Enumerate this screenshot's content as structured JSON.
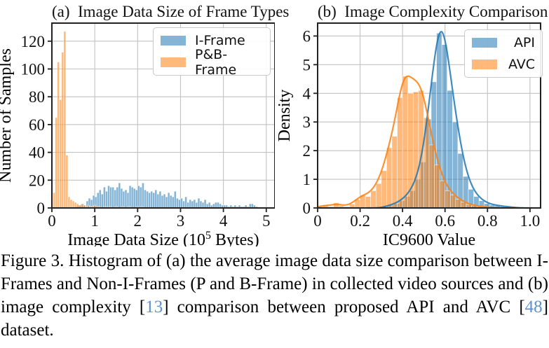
{
  "page": {
    "background": "#ffffff"
  },
  "colors": {
    "series_blue": "#1f77b4",
    "series_orange": "#ff7f0e",
    "cite_link": "#5e92cc",
    "grid": "#c2c2c2",
    "axis": "#222222",
    "text": "#111111"
  },
  "chart_data": [
    {
      "id": "a",
      "type": "bar",
      "title": "(a)  Image Data Size of Frame Types",
      "xlabel_pre": "Image Data Size (10",
      "xlabel_sup": "5",
      "xlabel_post": " Bytes)",
      "ylabel": "Number of Samples",
      "xlim": [
        0,
        5.2
      ],
      "ylim": [
        0,
        133
      ],
      "xticks": [
        0,
        1,
        2,
        3,
        4,
        5
      ],
      "xtick_labels": [
        "0",
        "1",
        "2",
        "3",
        "4",
        "5"
      ],
      "yticks": [
        0,
        20,
        40,
        60,
        80,
        100,
        120
      ],
      "ytick_labels": [
        "0",
        "20",
        "40",
        "60",
        "80",
        "100",
        "120"
      ],
      "grid": true,
      "legend_position": "top-right",
      "series": [
        {
          "name": "I-Frame",
          "color": "#1f77b4",
          "style": "bars",
          "kde": false,
          "bin_start": 0.55,
          "bin_width": 0.05,
          "values": [
            1,
            2,
            2,
            3,
            2,
            5,
            7,
            6,
            9,
            8,
            11,
            13,
            10,
            15,
            12,
            16,
            15,
            15,
            13,
            15,
            18,
            14,
            12,
            13,
            11,
            16,
            15,
            14,
            13,
            16,
            15,
            18,
            13,
            12,
            11,
            12,
            11,
            13,
            10,
            12,
            9,
            10,
            8,
            11,
            9,
            8,
            12,
            7,
            6,
            7,
            5,
            8,
            4,
            6,
            5,
            6,
            4,
            7,
            5,
            4,
            6,
            3,
            4,
            2,
            3,
            4,
            4,
            3,
            2,
            2,
            2,
            1,
            2,
            1,
            2,
            1,
            2,
            1,
            1,
            2,
            1,
            3,
            3,
            2,
            1
          ]
        },
        {
          "name": "P&B-Frame",
          "color": "#ff7f0e",
          "style": "bars",
          "kde": false,
          "bin_start": 0.025,
          "bin_width": 0.05,
          "values": [
            11,
            65,
            105,
            78,
            112,
            127,
            38,
            8,
            6,
            5,
            4,
            3,
            2,
            3,
            2,
            1,
            2,
            1,
            1,
            2,
            0,
            1,
            0,
            0,
            1,
            0,
            1,
            0,
            0,
            1,
            0,
            0,
            1,
            0,
            0,
            1,
            0,
            0,
            0,
            1,
            0,
            1
          ]
        }
      ]
    },
    {
      "id": "b",
      "type": "bar",
      "title": "(b)  Image Complexity Comparison",
      "xlabel_pre": "IC9600 Value",
      "xlabel_sup": "",
      "xlabel_post": "",
      "ylabel": "Density",
      "xlim": [
        0,
        1.05
      ],
      "ylim": [
        0,
        6.45
      ],
      "xticks": [
        0,
        0.2,
        0.4,
        0.6,
        0.8,
        1.0
      ],
      "xtick_labels": [
        "0",
        "0.2",
        "0.4",
        "0.6",
        "0.8",
        "1.0"
      ],
      "yticks": [
        0,
        1,
        2,
        3,
        4,
        5,
        6
      ],
      "ytick_labels": [
        "0",
        "1",
        "2",
        "3",
        "4",
        "5",
        "6"
      ],
      "grid": true,
      "legend_position": "top-right",
      "series": [
        {
          "name": "API",
          "color": "#1f77b4",
          "style": "bars",
          "kde": true,
          "kde_peak": 6.15,
          "bin_start": 0.31,
          "bin_width": 0.025,
          "values": [
            0.05,
            0.1,
            0.15,
            0.25,
            0.4,
            0.6,
            1.0,
            1.6,
            3.1,
            4.4,
            6.1,
            5.7,
            4.1,
            3.0,
            1.9,
            1.1,
            0.65,
            0.4,
            0.25,
            0.15,
            0.1,
            0.08,
            0.05,
            0.04,
            0.02
          ]
        },
        {
          "name": "AVC",
          "color": "#ff7f0e",
          "style": "bars",
          "kde": true,
          "kde_peak": 4.6,
          "bin_start": 0.0,
          "bin_width": 0.025,
          "values": [
            0.06,
            0.1,
            0.05,
            0.18,
            0.08,
            0.05,
            0.14,
            0.3,
            0.45,
            0.4,
            0.6,
            0.85,
            1.3,
            2.1,
            2.5,
            3.85,
            4.6,
            4.0,
            4.05,
            4.1,
            3.15,
            2.2,
            1.5,
            0.95,
            0.6,
            0.45,
            0.3,
            0.2,
            0.12,
            0.08,
            0.05,
            0.04,
            0.02,
            0.02
          ]
        }
      ]
    }
  ],
  "caption": {
    "label": "Figure 3.",
    "segments": [
      {
        "text": "Figure 3. Histogram of (a) the average image data size comparison between I-Frames and Non-I-Frames (P and B-Frame) in collected video sources and (b) image complexity [",
        "cite": false
      },
      {
        "text": "13",
        "cite": true
      },
      {
        "text": "] comparison between proposed API and AVC [",
        "cite": false
      },
      {
        "text": "48",
        "cite": true
      },
      {
        "text": "] dataset.",
        "cite": false
      }
    ]
  }
}
